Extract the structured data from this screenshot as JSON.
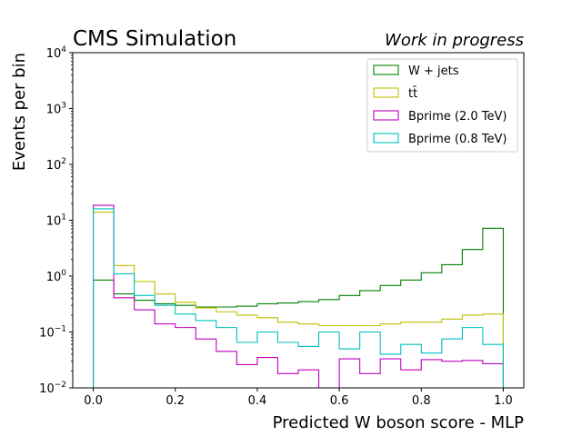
{
  "chart_data": {
    "type": "histogram-step",
    "title_left": "CMS Simulation",
    "title_right": "Work in progress",
    "xlabel": "Predicted W boson score - MLP",
    "ylabel": "Events per bin",
    "xlim": [
      -0.05,
      1.05
    ],
    "ylim": [
      0.01,
      10000
    ],
    "yscale": "log",
    "grid": false,
    "legend_position": "top-right",
    "x_ticks": [
      0.0,
      0.2,
      0.4,
      0.6,
      0.8,
      1.0
    ],
    "x_tick_labels": [
      "0.0",
      "0.2",
      "0.4",
      "0.6",
      "0.8",
      "1.0"
    ],
    "y_ticks": [
      0.01,
      0.1,
      1,
      10,
      100,
      1000,
      10000
    ],
    "y_tick_labels": [
      {
        "base": "10",
        "exp": "−2"
      },
      {
        "base": "10",
        "exp": "−1"
      },
      {
        "base": "10",
        "exp": "0"
      },
      {
        "base": "10",
        "exp": "1"
      },
      {
        "base": "10",
        "exp": "2"
      },
      {
        "base": "10",
        "exp": "3"
      },
      {
        "base": "10",
        "exp": "4"
      }
    ],
    "bin_edges": [
      0.0,
      0.05,
      0.1,
      0.15,
      0.2,
      0.25,
      0.3,
      0.35,
      0.4,
      0.45,
      0.5,
      0.55,
      0.6,
      0.65,
      0.7,
      0.75,
      0.8,
      0.85,
      0.9,
      0.95,
      1.0
    ],
    "series": [
      {
        "name": "W + jets",
        "legend_label": "W + jets",
        "color": "#008000",
        "values": [
          0.85,
          0.48,
          0.37,
          0.32,
          0.3,
          0.28,
          0.28,
          0.29,
          0.32,
          0.33,
          0.35,
          0.38,
          0.45,
          0.55,
          0.68,
          0.85,
          1.15,
          1.6,
          3.0,
          7.2
        ]
      },
      {
        "name": "tt̄",
        "legend_label": "tt̄",
        "color": "#bfbf00",
        "values": [
          14.0,
          1.55,
          0.8,
          0.48,
          0.34,
          0.27,
          0.23,
          0.2,
          0.18,
          0.15,
          0.14,
          0.13,
          0.13,
          0.13,
          0.14,
          0.15,
          0.15,
          0.17,
          0.2,
          0.21
        ]
      },
      {
        "name": "Bprime (2.0 TeV)",
        "legend_label": "Bprime (2.0 TeV)",
        "color": "#bf00bf",
        "values": [
          18.5,
          0.41,
          0.25,
          0.14,
          0.12,
          0.075,
          0.045,
          0.026,
          0.035,
          0.018,
          0.021,
          0.008,
          0.033,
          0.018,
          0.033,
          0.021,
          0.032,
          0.03,
          0.031,
          0.027
        ]
      },
      {
        "name": "Bprime (0.8 TeV)",
        "legend_label": "Bprime (0.8 TeV)",
        "color": "#00bfbf",
        "values": [
          16.0,
          1.1,
          0.45,
          0.3,
          0.21,
          0.16,
          0.12,
          0.065,
          0.1,
          0.065,
          0.055,
          0.1,
          0.05,
          0.1,
          0.04,
          0.06,
          0.042,
          0.075,
          0.12,
          0.06
        ]
      }
    ]
  }
}
